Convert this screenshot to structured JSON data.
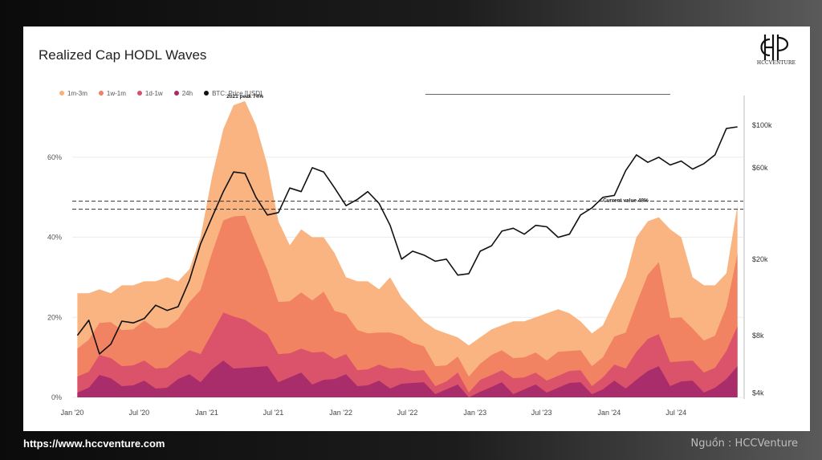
{
  "footer": {
    "url": "https://www.hccventure.com",
    "source": "Nguồn : HCCVenture"
  },
  "logo": {
    "text": "HCCVENTURE"
  },
  "chart_data": {
    "type": "area",
    "title": "Realized Cap HODL Waves",
    "legend": [
      {
        "name": "1m-3m",
        "color": "#f9b07a"
      },
      {
        "name": "1w-1m",
        "color": "#f08060"
      },
      {
        "name": "1d-1w",
        "color": "#d9506a"
      },
      {
        "name": "24h",
        "color": "#a72a6c"
      },
      {
        "name": "BTC: Price [USD]",
        "color": "#111111"
      }
    ],
    "x_ticks": [
      "Jan '20",
      "Jul '20",
      "Jan '21",
      "Jul '21",
      "Jan '22",
      "Jul '22",
      "Jan '23",
      "Jul '23",
      "Jan '24",
      "Jul '24"
    ],
    "x_range": [
      "2020-01-01",
      "2024-12-31"
    ],
    "y_left": {
      "ticks": [
        "0%",
        "20%",
        "40%",
        "60%"
      ],
      "values": [
        0,
        20,
        40,
        60
      ],
      "range": [
        0,
        75
      ]
    },
    "y_right": {
      "scale": "log",
      "ticks": [
        "$4k",
        "$8k",
        "$20k",
        "$60k",
        "$100k"
      ],
      "values": [
        4000,
        8000,
        20000,
        60000,
        100000
      ]
    },
    "annotations": [
      {
        "text": "2021 peak 74%",
        "x": "2021-04-15",
        "y": 74
      },
      {
        "text": "Current value  48%",
        "x": "2024-02-15",
        "y": 48
      }
    ],
    "reference_band": [
      47,
      49
    ],
    "dates": [
      "2020-01",
      "2020-02",
      "2020-03",
      "2020-04",
      "2020-05",
      "2020-06",
      "2020-07",
      "2020-08",
      "2020-09",
      "2020-10",
      "2020-11",
      "2020-12",
      "2021-01",
      "2021-02",
      "2021-03",
      "2021-04",
      "2021-05",
      "2021-06",
      "2021-07",
      "2021-08",
      "2021-09",
      "2021-10",
      "2021-11",
      "2021-12",
      "2022-01",
      "2022-02",
      "2022-03",
      "2022-04",
      "2022-05",
      "2022-06",
      "2022-07",
      "2022-08",
      "2022-09",
      "2022-10",
      "2022-11",
      "2022-12",
      "2023-01",
      "2023-02",
      "2023-03",
      "2023-04",
      "2023-05",
      "2023-06",
      "2023-07",
      "2023-08",
      "2023-09",
      "2023-10",
      "2023-11",
      "2023-12",
      "2024-01",
      "2024-02",
      "2024-03",
      "2024-04",
      "2024-05",
      "2024-06",
      "2024-07",
      "2024-08",
      "2024-09",
      "2024-10",
      "2024-11",
      "2024-12"
    ],
    "series": [
      {
        "name": "1m-3m",
        "values": [
          26,
          26,
          27,
          26,
          28,
          28,
          29,
          29,
          30,
          29,
          32,
          40,
          55,
          67,
          73,
          74,
          68,
          58,
          44,
          38,
          42,
          40,
          40,
          36,
          30,
          29,
          29,
          27,
          30,
          25,
          22,
          19,
          17,
          16,
          15,
          13,
          15,
          17,
          18,
          19,
          19,
          20,
          21,
          22,
          21,
          19,
          16,
          18,
          24,
          30,
          40,
          44,
          45,
          42,
          40,
          30,
          28,
          28,
          31,
          48
        ]
      },
      {
        "name": "1w-1m",
        "values": [
          14,
          15,
          18,
          17,
          18,
          17,
          18,
          19,
          18,
          19,
          22,
          28,
          36,
          43,
          47,
          46,
          38,
          30,
          25,
          24,
          25,
          26,
          27,
          21,
          19,
          18,
          16,
          15,
          18,
          16,
          13,
          11,
          9,
          8,
          9,
          7,
          9,
          10,
          10,
          11,
          10,
          10,
          11,
          12,
          11,
          10,
          9,
          10,
          14,
          18,
          24,
          30,
          32,
          21,
          20,
          16,
          16,
          16,
          22,
          34
        ]
      },
      {
        "name": "1d-1w",
        "values": [
          7,
          7,
          10,
          8,
          9,
          8,
          8,
          9,
          8,
          9,
          10,
          12,
          16,
          20,
          22,
          20,
          17,
          14,
          12,
          11,
          11,
          13,
          12,
          9,
          9,
          8,
          7,
          7,
          9,
          8,
          6,
          5,
          4,
          4,
          5,
          3,
          5,
          5,
          5,
          6,
          5,
          5,
          6,
          6,
          6,
          5,
          4,
          5,
          7,
          9,
          12,
          14,
          14,
          10,
          9,
          8,
          8,
          8,
          11,
          16
        ]
      },
      {
        "name": "24h",
        "values": [
          3,
          3,
          5,
          3,
          4,
          3,
          3,
          4,
          3,
          4,
          4,
          5,
          7,
          8,
          9,
          8,
          7,
          6,
          5,
          5,
          5,
          5,
          5,
          4,
          4,
          4,
          3,
          3,
          4,
          4,
          3,
          2,
          2,
          2,
          2,
          1,
          2,
          2,
          2,
          2,
          2,
          2,
          3,
          3,
          3,
          2,
          2,
          2,
          3,
          4,
          5,
          6,
          6,
          4,
          4,
          3,
          3,
          3,
          4,
          6
        ]
      },
      {
        "name": "BTC: Price [USD]",
        "axis": "right",
        "values": [
          8000,
          9600,
          6400,
          7200,
          9500,
          9300,
          9800,
          11500,
          10800,
          11300,
          15500,
          24000,
          33000,
          45000,
          57000,
          56000,
          42000,
          34000,
          35000,
          47000,
          45000,
          60000,
          57000,
          47000,
          38000,
          41000,
          45000,
          39000,
          30000,
          20000,
          22000,
          21000,
          19500,
          20000,
          16500,
          16800,
          22000,
          23500,
          28000,
          29000,
          27000,
          30000,
          29500,
          26000,
          27000,
          34000,
          37000,
          42000,
          43000,
          58000,
          70000,
          64000,
          68000,
          62000,
          65000,
          59000,
          63000,
          70000,
          96000,
          98000
        ]
      }
    ]
  }
}
